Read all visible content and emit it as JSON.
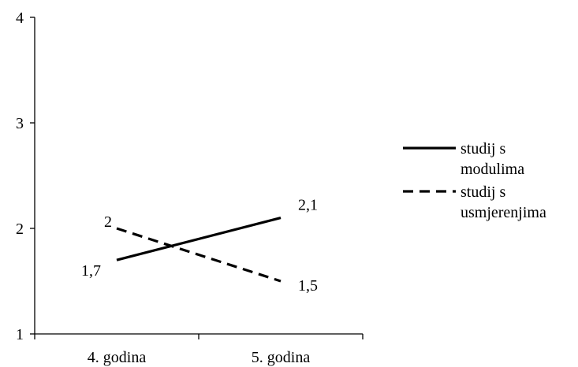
{
  "chart_data": {
    "type": "line",
    "categories": [
      "4. godina",
      "5. godina"
    ],
    "series": [
      {
        "name": "studij s modulima",
        "values": [
          1.7,
          2.1
        ],
        "data_labels": [
          "1,7",
          "2,1"
        ],
        "style": "solid",
        "color": "#000000"
      },
      {
        "name": "studij s usmjerenjima",
        "values": [
          2,
          1.5
        ],
        "data_labels": [
          "2",
          "1,5"
        ],
        "style": "dashed",
        "color": "#000000"
      }
    ],
    "y_ticks": [
      "1",
      "2",
      "3",
      "4"
    ],
    "ylim": [
      1,
      4
    ],
    "grid": false,
    "legend_position": "right",
    "legend_lines": [
      [
        "studij s",
        "modulima"
      ],
      [
        "studij s",
        "usmjerenjima"
      ]
    ],
    "title": "",
    "xlabel": "",
    "ylabel": ""
  }
}
